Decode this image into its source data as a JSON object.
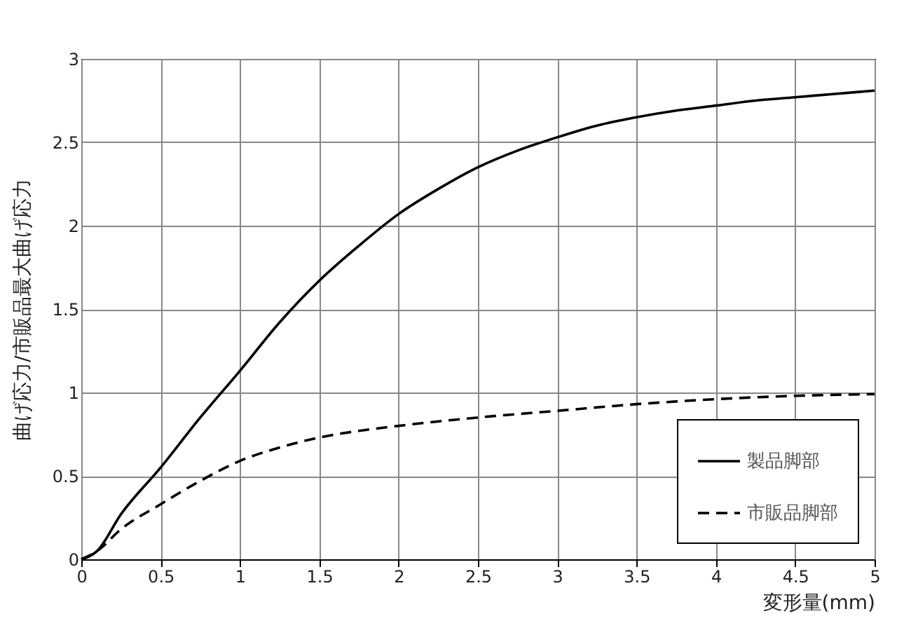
{
  "chart_data": {
    "type": "line",
    "xlabel": "変形量(mm)",
    "ylabel": "曲げ応力/市販品最大曲げ応力",
    "xlim": [
      0,
      5
    ],
    "ylim": [
      0,
      3
    ],
    "xticks": [
      0,
      0.5,
      1,
      1.5,
      2,
      2.5,
      3,
      3.5,
      4,
      4.5,
      5
    ],
    "yticks": [
      0,
      0.5,
      1,
      1.5,
      2,
      2.5,
      3
    ],
    "grid": true,
    "legend": "bottom right",
    "series": [
      {
        "name": "製品脚部",
        "color": "#000000",
        "line_style": "solid",
        "x": [
          0,
          0.1,
          0.25,
          0.5,
          0.75,
          1,
          1.25,
          1.5,
          1.75,
          2,
          2.25,
          2.5,
          2.75,
          3,
          3.25,
          3.5,
          3.75,
          4,
          4.25,
          4.5,
          4.75,
          5
        ],
        "values": [
          0,
          0.05,
          0.27,
          0.55,
          0.85,
          1.13,
          1.42,
          1.67,
          1.88,
          2.07,
          2.22,
          2.35,
          2.45,
          2.53,
          2.6,
          2.65,
          2.69,
          2.72,
          2.75,
          2.77,
          2.79,
          2.81
        ]
      },
      {
        "name": "市販品脚部",
        "color": "#000000",
        "line_style": "dashed",
        "x": [
          0,
          0.1,
          0.25,
          0.5,
          0.75,
          1,
          1.25,
          1.5,
          1.75,
          2,
          2.5,
          3,
          3.5,
          4,
          4.5,
          5
        ],
        "values": [
          0,
          0.05,
          0.18,
          0.33,
          0.47,
          0.59,
          0.67,
          0.73,
          0.77,
          0.8,
          0.85,
          0.89,
          0.93,
          0.96,
          0.98,
          0.99
        ]
      }
    ]
  }
}
